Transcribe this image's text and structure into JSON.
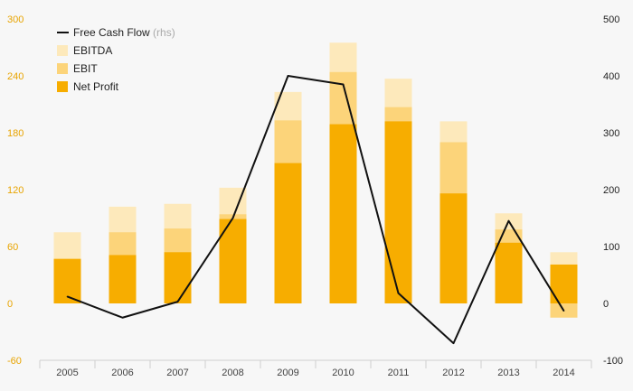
{
  "chart_data": {
    "type": "bar",
    "categories": [
      "2005",
      "2006",
      "2007",
      "2008",
      "2009",
      "2010",
      "2011",
      "2012",
      "2013",
      "2014"
    ],
    "series": [
      {
        "name": "EBITDA",
        "kind": "bar-overlay",
        "axis": "left",
        "color": "#fde9bb",
        "values": [
          75,
          102,
          105,
          122,
          223,
          275,
          237,
          192,
          95,
          54
        ]
      },
      {
        "name": "EBIT",
        "kind": "bar-overlay",
        "axis": "left",
        "color": "#fcd47a",
        "values": [
          32,
          75,
          79,
          94,
          193,
          244,
          207,
          170,
          78,
          -15
        ]
      },
      {
        "name": "Net Profit",
        "kind": "bar-overlay",
        "axis": "left",
        "color": "#f7ad00",
        "values": [
          47,
          51,
          54,
          89,
          148,
          189,
          192,
          116,
          64,
          41
        ]
      },
      {
        "name": "Free Cash Flow",
        "kind": "line",
        "axis": "right",
        "color": "#111111",
        "values": [
          12,
          -25,
          3,
          150,
          400,
          385,
          18,
          -70,
          145,
          -13
        ]
      }
    ],
    "left_axis": {
      "min": -60,
      "max": 300,
      "ticks": [
        "-60",
        "0",
        "60",
        "120",
        "180",
        "240",
        "300"
      ],
      "color": "#e8a400"
    },
    "right_axis": {
      "min": -100,
      "max": 500,
      "ticks": [
        "-100",
        "0",
        "100",
        "200",
        "300",
        "400",
        "500"
      ]
    },
    "legend": {
      "position": "top-left",
      "line_label": "Free Cash Flow",
      "line_note": "(rhs)",
      "items": [
        "EBITDA",
        "EBIT",
        "Net Profit"
      ]
    },
    "grid": false,
    "xlabel": "",
    "ylabel": ""
  }
}
